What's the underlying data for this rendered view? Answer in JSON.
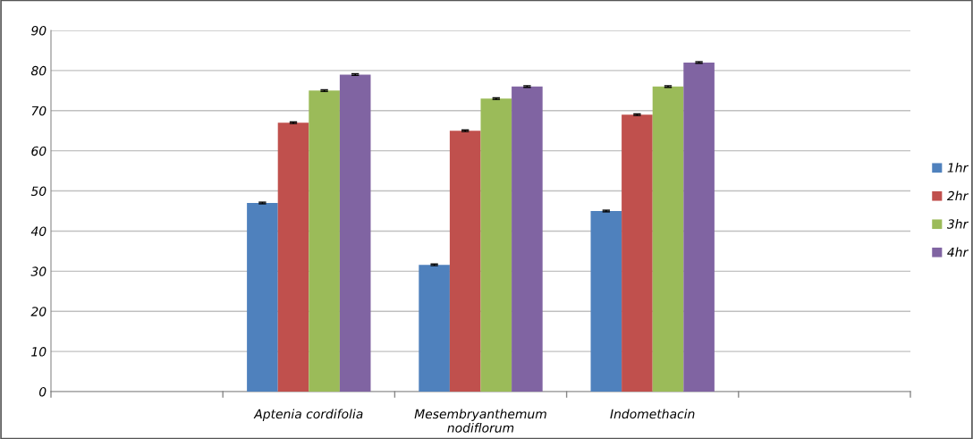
{
  "chart_data": {
    "type": "bar",
    "categories": [
      null,
      "Aptenia cordifolia",
      "Mesembryanthemum\nnodiflorum",
      "Indomethacin",
      null
    ],
    "series": [
      {
        "name": "1hr",
        "color": "#4f81bd",
        "values": [
          null,
          47,
          31.6,
          45,
          null
        ],
        "errors": [
          null,
          0.2,
          0.2,
          0.2,
          null
        ]
      },
      {
        "name": "2hr",
        "color": "#c0504d",
        "values": [
          null,
          67,
          65,
          69,
          null
        ],
        "errors": [
          null,
          0.2,
          0.2,
          0.2,
          null
        ]
      },
      {
        "name": "3hr",
        "color": "#9bbb59",
        "values": [
          null,
          75,
          73,
          76,
          null
        ],
        "errors": [
          null,
          0.2,
          0.2,
          0.2,
          null
        ]
      },
      {
        "name": "4hr",
        "color": "#8064a2",
        "values": [
          null,
          79,
          76,
          82,
          null
        ],
        "errors": [
          null,
          0.2,
          0.2,
          0.2,
          null
        ]
      }
    ],
    "ylim": [
      0,
      90
    ],
    "yticks": [
      0,
      10,
      20,
      30,
      40,
      50,
      60,
      70,
      80,
      90
    ],
    "grid": "y",
    "legend": "right"
  }
}
